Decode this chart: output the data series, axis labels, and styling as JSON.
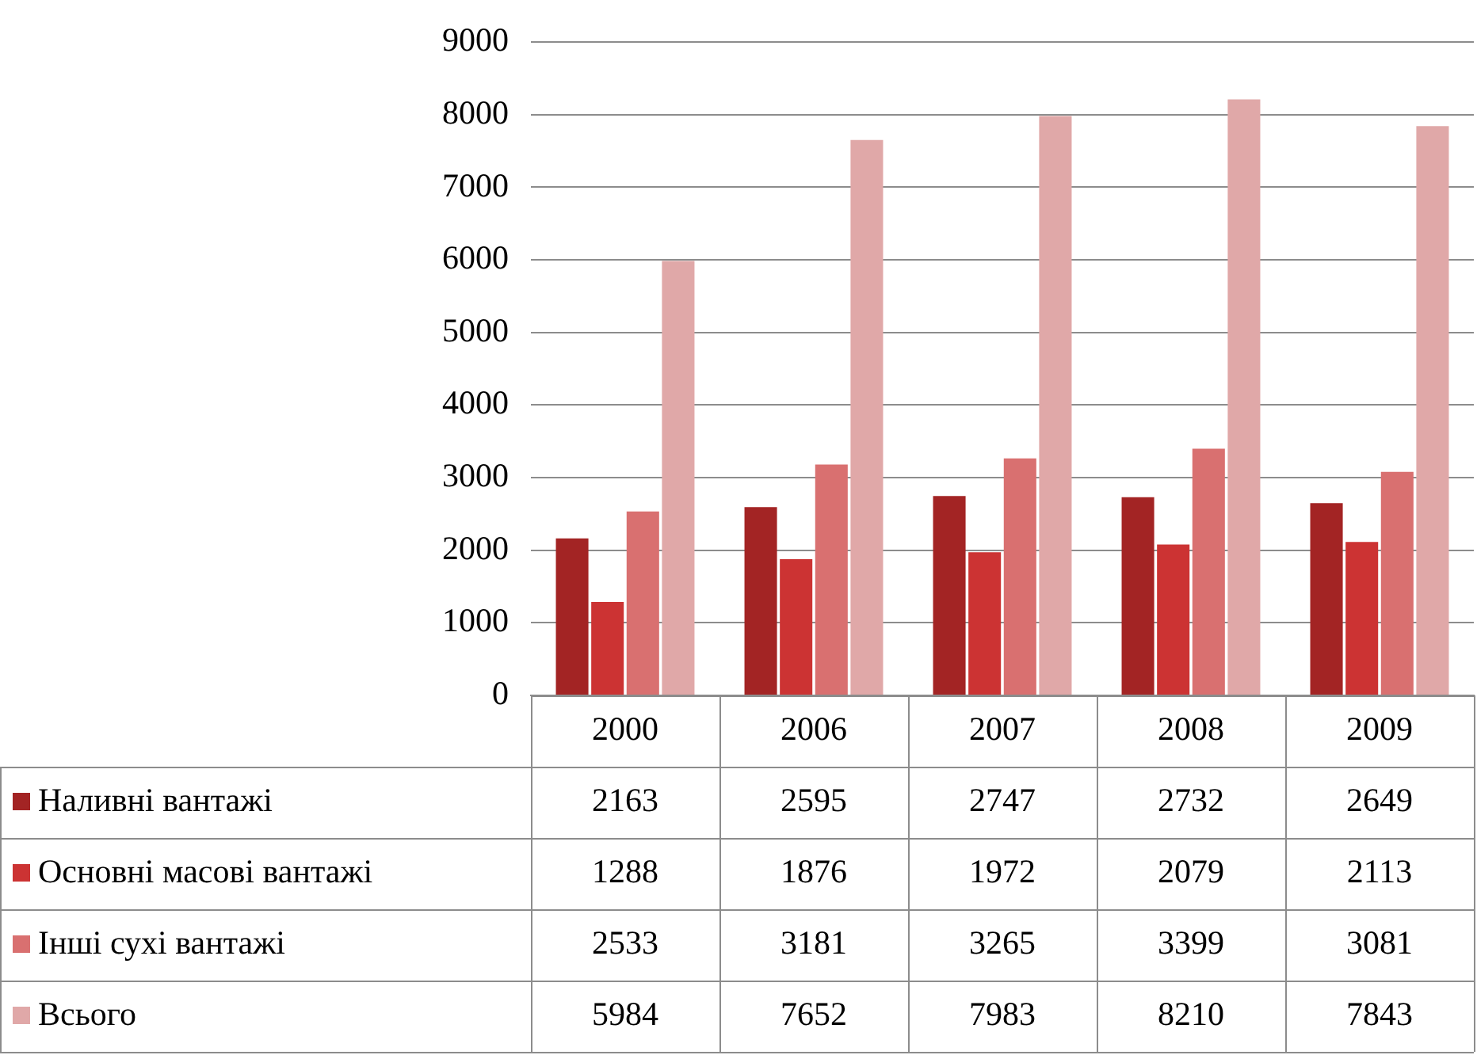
{
  "chart_data": {
    "type": "bar",
    "categories": [
      "2000",
      "2006",
      "2007",
      "2008",
      "2009"
    ],
    "series": [
      {
        "name": "Наливні вантажі",
        "color": "#a32424",
        "values": [
          2163,
          2595,
          2747,
          2732,
          2649
        ]
      },
      {
        "name": "Основні масові вантажі",
        "color": "#cc3333",
        "values": [
          1288,
          1876,
          1972,
          2079,
          2113
        ]
      },
      {
        "name": "Інші сухі вантажі",
        "color": "#d97070",
        "values": [
          2533,
          3181,
          3265,
          3399,
          3081
        ]
      },
      {
        "name": "Всього",
        "color": "#e0a8a8",
        "values": [
          5984,
          7652,
          7983,
          8210,
          7843
        ]
      }
    ],
    "ylim": [
      0,
      9000
    ],
    "yticks": [
      0,
      1000,
      2000,
      3000,
      4000,
      5000,
      6000,
      7000,
      8000,
      9000
    ],
    "grid": "y",
    "legend": "bottom left",
    "data_labels": true
  }
}
